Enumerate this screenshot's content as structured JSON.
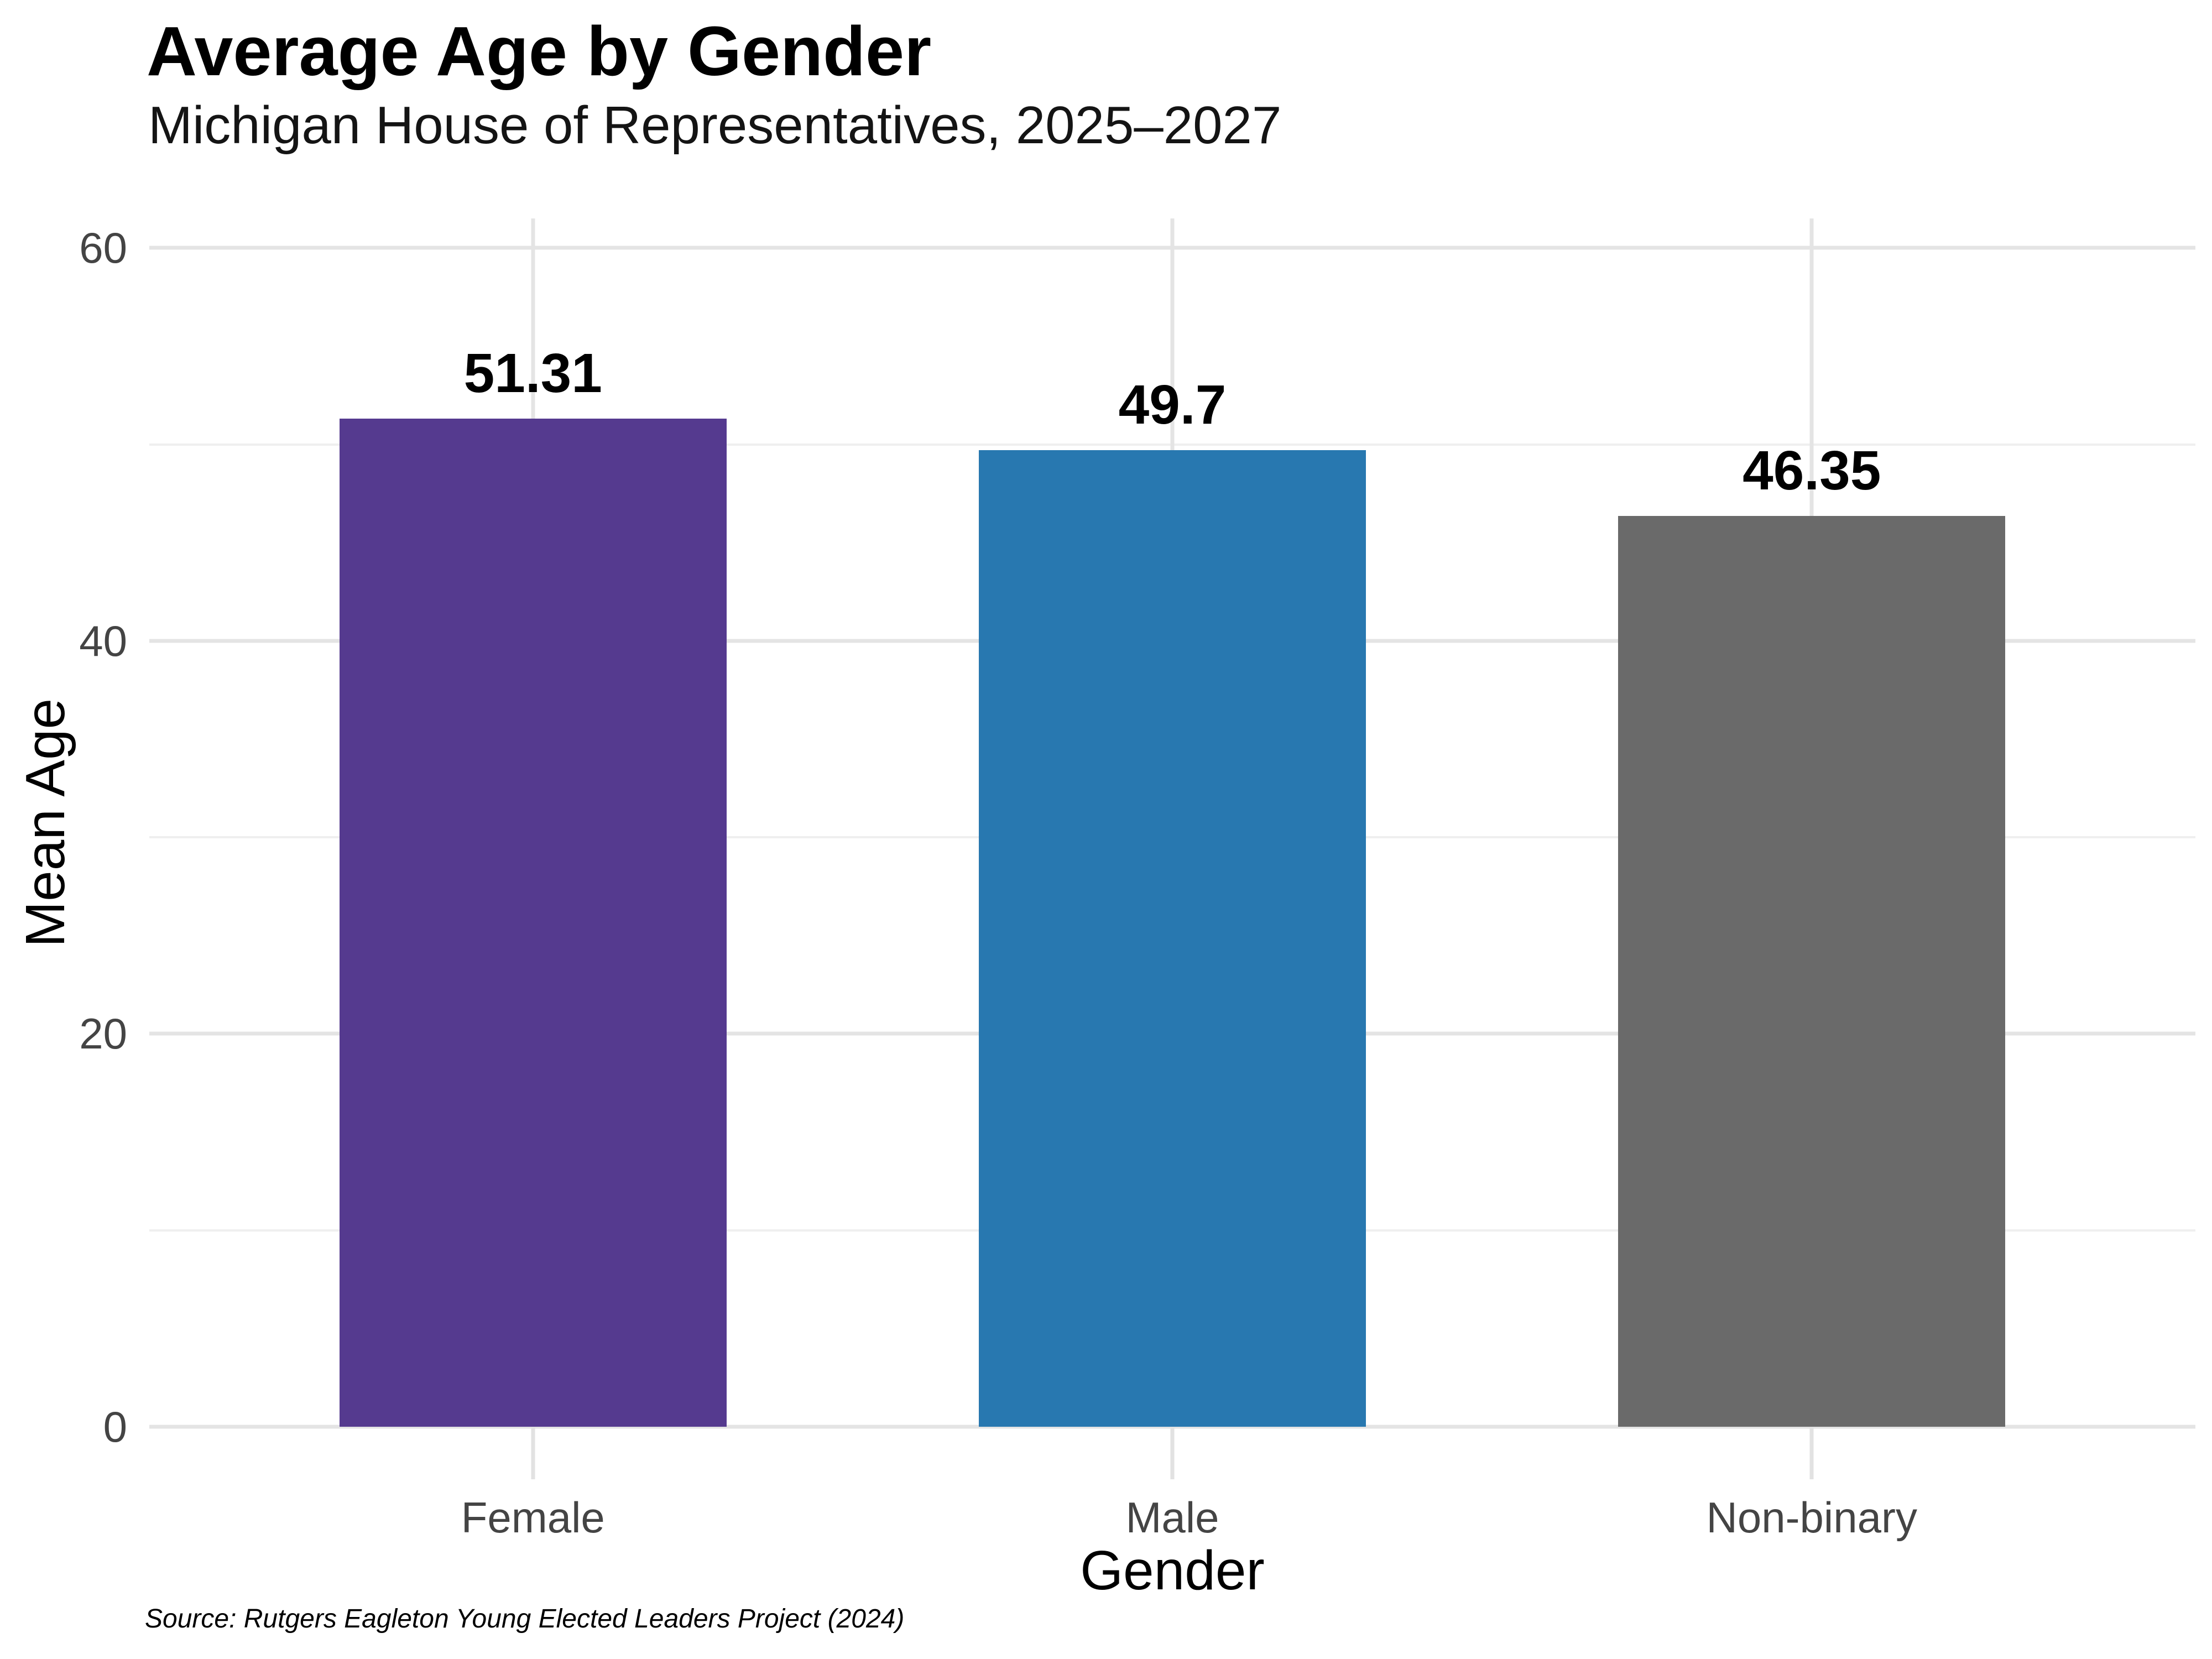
{
  "title": "Average Age by Gender",
  "subtitle": "Michigan House of Representatives, 2025–2027",
  "caption": "Source: Rutgers Eagleton Young Elected Leaders Project (2024)",
  "x_axis": {
    "title": "Gender",
    "tick_labels": [
      "Female",
      "Male",
      "Non-binary"
    ]
  },
  "y_axis": {
    "title": "Mean Age",
    "tick_labels": [
      "0",
      "20",
      "40",
      "60"
    ]
  },
  "chart_data": {
    "type": "bar",
    "title": "Average Age by Gender",
    "subtitle": "Michigan House of Representatives, 2025–2027",
    "categories": [
      "Female",
      "Male",
      "Non-binary"
    ],
    "values": [
      51.31,
      49.7,
      46.35
    ],
    "value_labels": [
      "51.31",
      "49.7",
      "46.35"
    ],
    "bar_colors": [
      "#553A8F",
      "#2878B0",
      "#6A6A6A"
    ],
    "xlabel": "Gender",
    "ylabel": "Mean Age",
    "ylim": [
      0,
      61.5
    ],
    "y_ticks_major": [
      0,
      20,
      40,
      60
    ],
    "y_ticks_minor": [
      10,
      30,
      50
    ],
    "grid": "horizontal major+minor, vertical major at category centers",
    "legend": "none",
    "background": "#FFFFFF"
  },
  "colors": {
    "grid_major": "#E4E4E4",
    "grid_minor": "#EFEFEF",
    "tick_mark": "#E2E2E2",
    "axis_text": "#444444",
    "text": "#000000",
    "background": "#FFFFFF"
  }
}
